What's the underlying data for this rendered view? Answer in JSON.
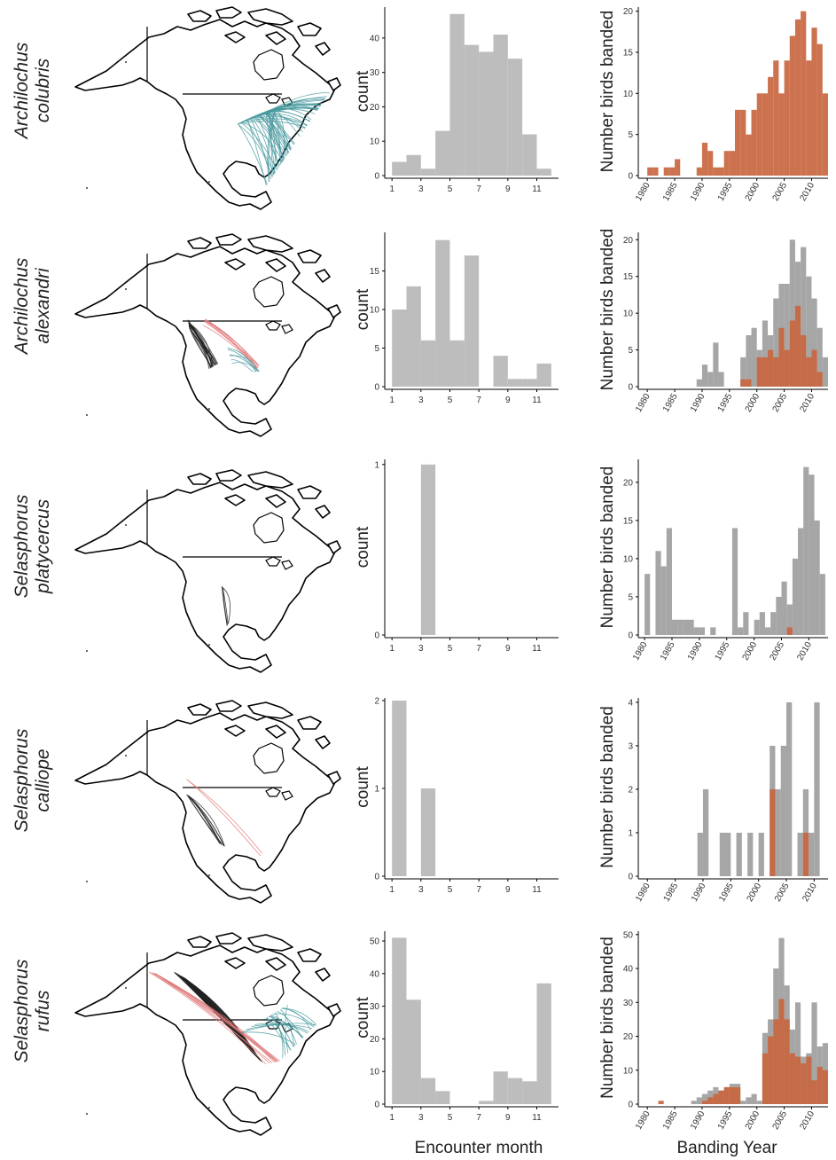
{
  "figure": {
    "x_titles": {
      "month": "Encounter month",
      "year": "Banding Year"
    },
    "colors": {
      "gray_bar": "#bdbdbd",
      "gray_year": "#9e9e9e",
      "orange": "#c8663f",
      "teal": "#4a9aa0",
      "red_route": "#e07b7b",
      "black_route": "#222222"
    }
  },
  "chart_data": [
    {
      "type": "map",
      "species": "Archilochus colubris",
      "routes": {
        "teal": 60,
        "red": 0,
        "black": 0
      }
    },
    {
      "type": "bar",
      "species": "Archilochus colubris",
      "ylabel": "count",
      "x_ticks": [
        "1",
        "3",
        "5",
        "7",
        "9",
        "11"
      ],
      "xlim": [
        0.5,
        12.5
      ],
      "y_ticks": [
        "0",
        "10",
        "20",
        "30",
        "40"
      ],
      "ylim": [
        0,
        49
      ],
      "bins": [
        {
          "start": 1,
          "end": 2,
          "value": 4
        },
        {
          "start": 2,
          "end": 3,
          "value": 6
        },
        {
          "start": 3,
          "end": 4,
          "value": 2
        },
        {
          "start": 4,
          "end": 5,
          "value": 13
        },
        {
          "start": 5,
          "end": 6,
          "value": 47
        },
        {
          "start": 6,
          "end": 7,
          "value": 38
        },
        {
          "start": 7,
          "end": 8,
          "value": 36
        },
        {
          "start": 8,
          "end": 9,
          "value": 41
        },
        {
          "start": 9,
          "end": 10,
          "value": 34
        },
        {
          "start": 10,
          "end": 11,
          "value": 12
        },
        {
          "start": 11,
          "end": 12,
          "value": 2
        }
      ]
    },
    {
      "type": "bar",
      "species": "Archilochus colubris",
      "ylabel": "Number birds banded",
      "x_ticks": [
        "1980",
        "1985",
        "1990",
        "1995",
        "2000",
        "2005",
        "2010"
      ],
      "xlim": [
        1979,
        2013
      ],
      "y_ticks": [
        "0",
        "5",
        "10",
        "15",
        "20"
      ],
      "ylim": [
        0,
        20.5
      ],
      "series": [
        {
          "name": "",
          "color": "orange",
          "values": [
            [
              1980,
              1
            ],
            [
              1981,
              1
            ],
            [
              1983,
              1
            ],
            [
              1984,
              1
            ],
            [
              1985,
              2
            ],
            [
              1987,
              0
            ],
            [
              1989,
              1
            ],
            [
              1990,
              4
            ],
            [
              1991,
              3
            ],
            [
              1992,
              1
            ],
            [
              1993,
              1
            ],
            [
              1994,
              3
            ],
            [
              1995,
              3
            ],
            [
              1996,
              8
            ],
            [
              1997,
              8
            ],
            [
              1998,
              5
            ],
            [
              1999,
              8
            ],
            [
              2000,
              10
            ],
            [
              2001,
              10
            ],
            [
              2002,
              12
            ],
            [
              2003,
              14
            ],
            [
              2004,
              10
            ],
            [
              2005,
              14
            ],
            [
              2006,
              17
            ],
            [
              2007,
              19
            ],
            [
              2008,
              20
            ],
            [
              2009,
              14
            ],
            [
              2010,
              18
            ],
            [
              2011,
              16
            ],
            [
              2012,
              10
            ]
          ]
        }
      ]
    },
    {
      "type": "map",
      "species": "Archilochus alexandri",
      "routes": {
        "teal": 6,
        "red": 8,
        "black": 18
      }
    },
    {
      "type": "bar",
      "species": "Archilochus alexandri",
      "ylabel": "count",
      "x_ticks": [
        "1",
        "3",
        "5",
        "7",
        "9",
        "11"
      ],
      "xlim": [
        0.5,
        12.5
      ],
      "y_ticks": [
        "0",
        "5",
        "10",
        "15"
      ],
      "ylim": [
        0,
        20
      ],
      "bins": [
        {
          "start": 1,
          "end": 2,
          "value": 10
        },
        {
          "start": 2,
          "end": 3,
          "value": 13
        },
        {
          "start": 3,
          "end": 4,
          "value": 6
        },
        {
          "start": 4,
          "end": 5,
          "value": 19
        },
        {
          "start": 5,
          "end": 6,
          "value": 6
        },
        {
          "start": 6,
          "end": 7,
          "value": 17
        },
        {
          "start": 8,
          "end": 9,
          "value": 4
        },
        {
          "start": 9,
          "end": 10,
          "value": 1
        },
        {
          "start": 10,
          "end": 11,
          "value": 1
        },
        {
          "start": 11,
          "end": 12,
          "value": 3
        }
      ]
    },
    {
      "type": "bar",
      "species": "Archilochus alexandri",
      "ylabel": "Number birds banded",
      "x_ticks": [
        "1980",
        "1985",
        "1990",
        "1995",
        "2000",
        "2005",
        "2010"
      ],
      "xlim": [
        1979,
        2013
      ],
      "y_ticks": [
        "0",
        "5",
        "10",
        "15",
        "20"
      ],
      "ylim": [
        0,
        21
      ],
      "series": [
        {
          "name": "",
          "color": "gray",
          "values": [
            [
              1989,
              1
            ],
            [
              1990,
              3
            ],
            [
              1991,
              2
            ],
            [
              1992,
              6
            ],
            [
              1993,
              2
            ],
            [
              1997,
              4
            ],
            [
              1998,
              7
            ],
            [
              1999,
              8
            ],
            [
              2000,
              5
            ],
            [
              2001,
              9
            ],
            [
              2002,
              7
            ],
            [
              2003,
              12
            ],
            [
              2004,
              14
            ],
            [
              2005,
              14
            ],
            [
              2006,
              20
            ],
            [
              2007,
              17
            ],
            [
              2008,
              19
            ],
            [
              2009,
              15
            ],
            [
              2010,
              12
            ],
            [
              2011,
              8
            ],
            [
              2012,
              4
            ]
          ]
        },
        {
          "name": "",
          "color": "orange",
          "values": [
            [
              1997,
              1
            ],
            [
              1998,
              1
            ],
            [
              2000,
              4
            ],
            [
              2001,
              4
            ],
            [
              2002,
              5
            ],
            [
              2003,
              4
            ],
            [
              2004,
              8
            ],
            [
              2005,
              5
            ],
            [
              2006,
              9
            ],
            [
              2007,
              11
            ],
            [
              2008,
              7
            ],
            [
              2009,
              4
            ],
            [
              2010,
              5
            ],
            [
              2011,
              2
            ]
          ]
        }
      ]
    },
    {
      "type": "map",
      "species": "Selasphorus platycercus",
      "routes": {
        "teal": 0,
        "red": 0,
        "black": 4
      }
    },
    {
      "type": "bar",
      "species": "Selasphorus platycercus",
      "ylabel": "count",
      "x_ticks": [
        "1",
        "3",
        "5",
        "7",
        "9",
        "11"
      ],
      "xlim": [
        0.5,
        12.5
      ],
      "y_ticks": [
        "0",
        "1"
      ],
      "ylim": [
        0,
        1.03
      ],
      "bins": [
        {
          "start": 3,
          "end": 4,
          "value": 1
        }
      ]
    },
    {
      "type": "bar",
      "species": "Selasphorus platycercus",
      "ylabel": "Number birds banded",
      "x_ticks": [
        "1980",
        "1985",
        "1990",
        "1995",
        "2000",
        "2005",
        "2010"
      ],
      "xlim": [
        1979.5,
        2013.5
      ],
      "y_ticks": [
        "0",
        "5",
        "10",
        "15",
        "20"
      ],
      "ylim": [
        0,
        23
      ],
      "series": [
        {
          "name": "",
          "color": "gray",
          "values": [
            [
              1980,
              8
            ],
            [
              1982,
              11
            ],
            [
              1983,
              9
            ],
            [
              1984,
              14
            ],
            [
              1985,
              2
            ],
            [
              1986,
              2
            ],
            [
              1987,
              2
            ],
            [
              1988,
              2
            ],
            [
              1989,
              1
            ],
            [
              1990,
              1
            ],
            [
              1992,
              1
            ],
            [
              1996,
              14
            ],
            [
              1997,
              1
            ],
            [
              1998,
              3
            ],
            [
              2000,
              2
            ],
            [
              2001,
              3
            ],
            [
              2002,
              1
            ],
            [
              2003,
              3
            ],
            [
              2004,
              5
            ],
            [
              2005,
              7
            ],
            [
              2006,
              4
            ],
            [
              2007,
              10
            ],
            [
              2008,
              14
            ],
            [
              2009,
              22
            ],
            [
              2010,
              21
            ],
            [
              2011,
              15
            ],
            [
              2012,
              8
            ]
          ]
        },
        {
          "name": "",
          "color": "orange",
          "values": [
            [
              2006,
              1
            ]
          ]
        }
      ]
    },
    {
      "type": "map",
      "species": "Selasphorus calliope",
      "routes": {
        "teal": 0,
        "red": 2,
        "black": 8
      }
    },
    {
      "type": "bar",
      "species": "Selasphorus calliope",
      "ylabel": "count",
      "x_ticks": [
        "1",
        "3",
        "5",
        "7",
        "9",
        "11"
      ],
      "xlim": [
        0.5,
        12.5
      ],
      "y_ticks": [
        "0",
        "1",
        "2"
      ],
      "ylim": [
        0,
        2.03
      ],
      "bins": [
        {
          "start": 1,
          "end": 2,
          "value": 2
        },
        {
          "start": 3,
          "end": 4,
          "value": 1
        }
      ]
    },
    {
      "type": "bar",
      "species": "Selasphorus calliope",
      "ylabel": "Number birds banded",
      "x_ticks": [
        "1980",
        "1985",
        "1990",
        "1995",
        "2000",
        "2005",
        "2010"
      ],
      "xlim": [
        1979,
        2012.5
      ],
      "y_ticks": [
        "0",
        "1",
        "2",
        "3",
        "4"
      ],
      "ylim": [
        0,
        4.1
      ],
      "series": [
        {
          "name": "",
          "color": "gray",
          "values": [
            [
              1989,
              1
            ],
            [
              1990,
              2
            ],
            [
              1993,
              1
            ],
            [
              1994,
              1
            ],
            [
              1996,
              1
            ],
            [
              1998,
              1
            ],
            [
              2000,
              1
            ],
            [
              2002,
              3
            ],
            [
              2003,
              2
            ],
            [
              2004,
              3
            ],
            [
              2005,
              4
            ],
            [
              2007,
              1
            ],
            [
              2008,
              2
            ],
            [
              2009,
              1
            ],
            [
              2010,
              4
            ]
          ]
        },
        {
          "name": "",
          "color": "orange",
          "values": [
            [
              2002,
              2
            ],
            [
              2008,
              1
            ]
          ]
        }
      ]
    },
    {
      "type": "map",
      "species": "Selasphorus rufus",
      "routes": {
        "teal": 20,
        "red": 10,
        "black": 45
      }
    },
    {
      "type": "bar",
      "species": "Selasphorus rufus",
      "ylabel": "count",
      "x_ticks": [
        "1",
        "3",
        "5",
        "7",
        "9",
        "11"
      ],
      "xlim": [
        0.5,
        12.5
      ],
      "y_ticks": [
        "0",
        "10",
        "20",
        "30",
        "40",
        "50"
      ],
      "ylim": [
        0,
        53
      ],
      "bins": [
        {
          "start": 1,
          "end": 2,
          "value": 51
        },
        {
          "start": 2,
          "end": 3,
          "value": 32
        },
        {
          "start": 3,
          "end": 4,
          "value": 8
        },
        {
          "start": 4,
          "end": 5,
          "value": 4
        },
        {
          "start": 7,
          "end": 8,
          "value": 1
        },
        {
          "start": 8,
          "end": 9,
          "value": 10
        },
        {
          "start": 9,
          "end": 10,
          "value": 8
        },
        {
          "start": 10,
          "end": 11,
          "value": 7
        },
        {
          "start": 11,
          "end": 12,
          "value": 37
        }
      ]
    },
    {
      "type": "bar",
      "species": "Selasphorus rufus",
      "ylabel": "Number birds banded",
      "x_ticks": [
        "1980",
        "1985",
        "1990",
        "1995",
        "2000",
        "2005",
        "2010"
      ],
      "xlim": [
        1979,
        2013
      ],
      "y_ticks": [
        "0",
        "10",
        "20",
        "30",
        "40",
        "50"
      ],
      "ylim": [
        0,
        51
      ],
      "series": [
        {
          "name": "",
          "color": "gray",
          "values": [
            [
              1988,
              1
            ],
            [
              1989,
              2
            ],
            [
              1990,
              3
            ],
            [
              1991,
              4
            ],
            [
              1992,
              5
            ],
            [
              1993,
              4
            ],
            [
              1994,
              5
            ],
            [
              1995,
              6
            ],
            [
              1996,
              6
            ],
            [
              1997,
              1
            ],
            [
              1998,
              2
            ],
            [
              1999,
              3
            ],
            [
              2000,
              1
            ],
            [
              2001,
              21
            ],
            [
              2002,
              25
            ],
            [
              2003,
              40
            ],
            [
              2004,
              49
            ],
            [
              2005,
              35
            ],
            [
              2006,
              22
            ],
            [
              2007,
              30
            ],
            [
              2008,
              14
            ],
            [
              2009,
              15
            ],
            [
              2010,
              30
            ],
            [
              2011,
              17
            ],
            [
              2012,
              18
            ]
          ]
        },
        {
          "name": "",
          "color": "orange",
          "values": [
            [
              1982,
              1
            ],
            [
              1990,
              1
            ],
            [
              1991,
              2
            ],
            [
              1992,
              3
            ],
            [
              1993,
              4
            ],
            [
              1994,
              5
            ],
            [
              1995,
              5
            ],
            [
              1996,
              5
            ],
            [
              2001,
              15
            ],
            [
              2002,
              20
            ],
            [
              2003,
              25
            ],
            [
              2004,
              31
            ],
            [
              2005,
              25
            ],
            [
              2006,
              15
            ],
            [
              2007,
              14
            ],
            [
              2008,
              12
            ],
            [
              2009,
              14
            ],
            [
              2010,
              7
            ],
            [
              2011,
              11
            ],
            [
              2012,
              10
            ]
          ]
        }
      ]
    }
  ]
}
